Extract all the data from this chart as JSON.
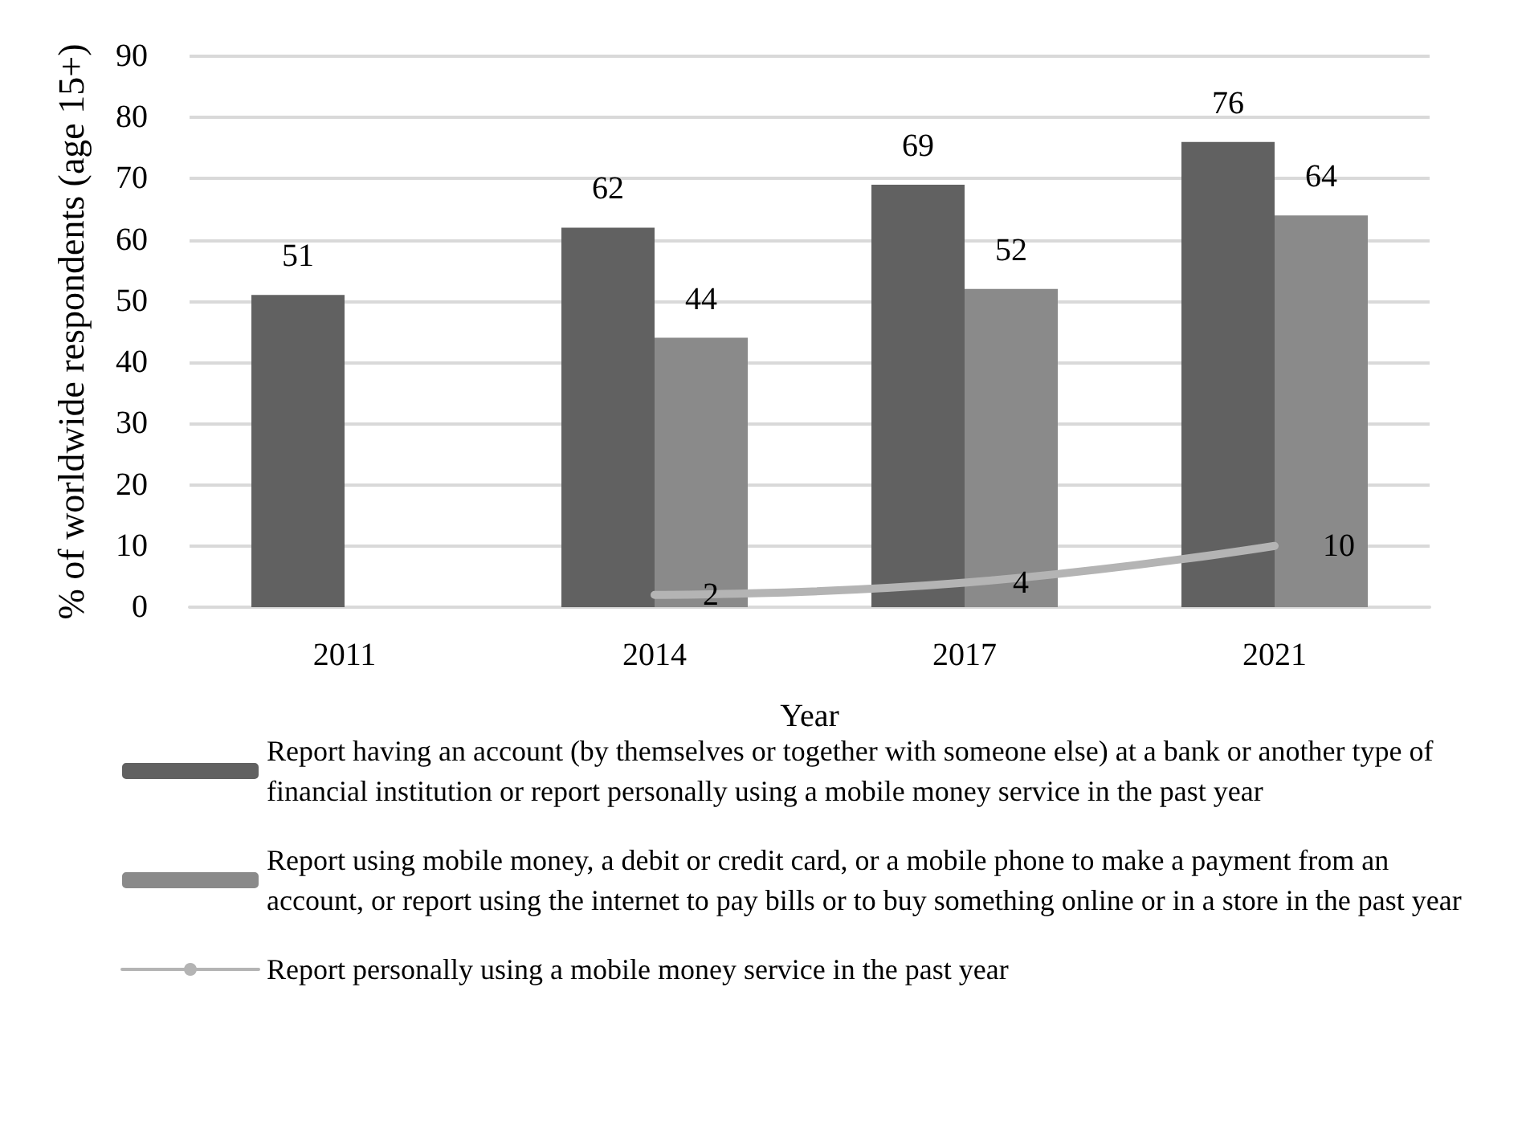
{
  "chart_data": {
    "type": "bar",
    "xlabel": "Year",
    "ylabel": "% of worldwide respondents (age 15+)",
    "categories": [
      "2011",
      "2014",
      "2017",
      "2021"
    ],
    "series": [
      {
        "name": "Report having an account (by themselves or together with someone else) at a bank or another type of financial institution or report personally using a mobile money service in the past year",
        "color": "#616161",
        "values": [
          51,
          62,
          69,
          76
        ]
      },
      {
        "name": "Report using mobile money, a debit or credit card, or a mobile phone to make a payment from an account, or report using the internet to pay bills or to buy something online or in a store in the past year",
        "color": "#8a8a8a",
        "values": [
          null,
          44,
          52,
          64
        ]
      },
      {
        "name": "Report personally using a mobile money service in the past year",
        "type": "line",
        "color": "#b4b4b4",
        "values": [
          null,
          2,
          4,
          10
        ]
      }
    ],
    "ylim": [
      0,
      90
    ],
    "yticks": [
      0,
      10,
      20,
      30,
      40,
      50,
      60,
      70,
      80,
      90
    ],
    "grid": "y",
    "legend": "bottom",
    "data_labels": true,
    "marker": "none",
    "line_style": "solid"
  }
}
